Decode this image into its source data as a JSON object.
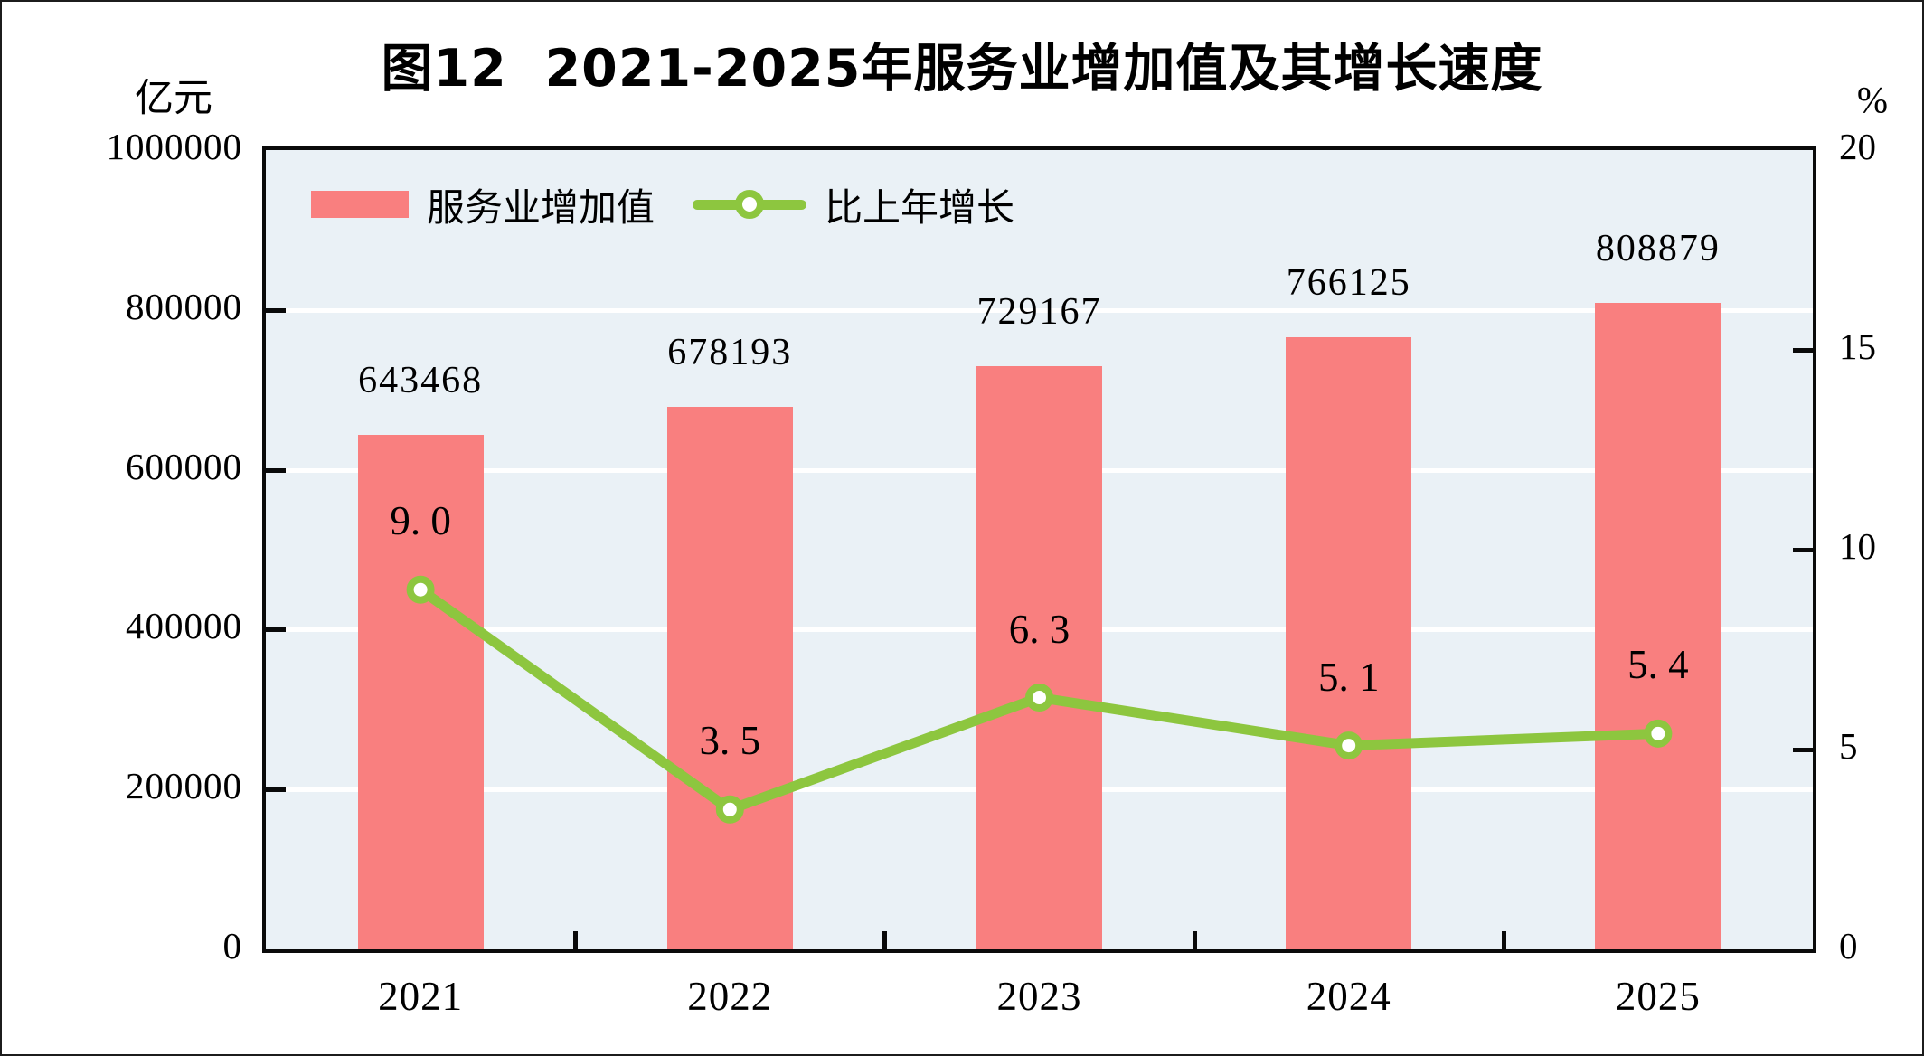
{
  "figure": {
    "title": "图12  2021-2025年服务业增加值及其增长速度",
    "left_axis_unit": "亿元",
    "right_axis_unit": "%"
  },
  "legend": {
    "position": "top-left-inside-plot",
    "items": [
      {
        "label": "服务业增加值",
        "marker": "bar-swatch",
        "color": "#F97F7F"
      },
      {
        "label": "比上年增长",
        "marker": "line-with-dot",
        "color": "#8DC63F"
      }
    ]
  },
  "chart_data": {
    "type": "combo-bar-line",
    "title": "图12  2021-2025年服务业增加值及其增长速度",
    "categories": [
      "2021",
      "2022",
      "2023",
      "2024",
      "2025"
    ],
    "series": [
      {
        "name": "服务业增加值",
        "type": "bar",
        "axis": "left",
        "unit": "亿元",
        "color": "#F97F7F",
        "values": [
          643468,
          678193,
          729167,
          766125,
          808879
        ],
        "data_labels": [
          "643468",
          "678193",
          "729167",
          "766125",
          "808879"
        ]
      },
      {
        "name": "比上年增长",
        "type": "line",
        "axis": "right",
        "unit": "%",
        "color": "#8DC63F",
        "marker": "circle-white-fill-green-ring",
        "values": [
          9.0,
          3.5,
          6.3,
          5.1,
          5.4
        ],
        "data_labels": [
          "9. 0",
          "3. 5",
          "6. 3",
          "5. 1",
          "5. 4"
        ]
      }
    ],
    "left_axis": {
      "label": "亿元",
      "min": 0,
      "max": 1000000,
      "tick_interval": 200000,
      "tick_labels": [
        "1000000",
        "800000",
        "600000",
        "400000",
        "200000",
        "0"
      ]
    },
    "right_axis": {
      "label": "%",
      "min": 0,
      "max": 20,
      "tick_interval": 5,
      "tick_labels": [
        "20",
        "15",
        "10",
        "5",
        "0"
      ]
    },
    "grid": {
      "horizontal_gridlines": true,
      "gridline_color": "#FFFFFF",
      "at_left_axis_values": [
        800000,
        600000,
        400000,
        200000
      ]
    },
    "legend_position": "top-left inside plot area",
    "plot_background": "#EAF1F6"
  },
  "colors": {
    "bar": "#F97F7F",
    "line": "#8DC63F",
    "marker_fill": "#FFFFFF",
    "plot_background": "#EAF1F6",
    "gridline": "#FFFFFF",
    "axis": "#0A0A0A",
    "text": "#000000",
    "page_background": "#FFFFFF"
  }
}
